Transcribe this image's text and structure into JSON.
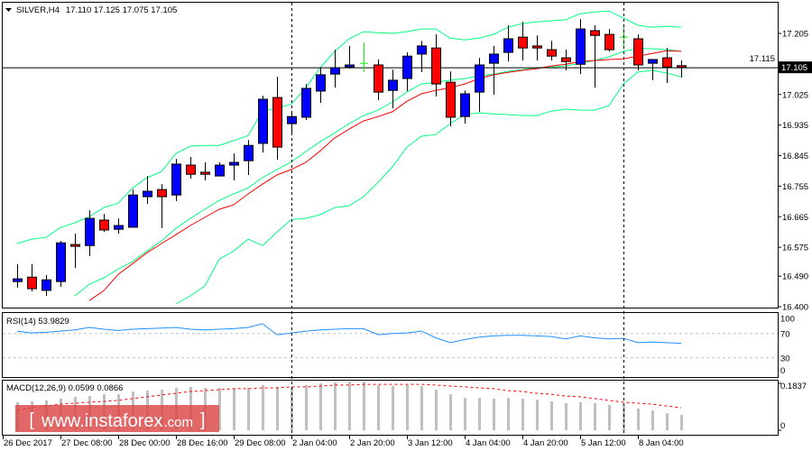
{
  "header": {
    "symbol": "SILVER,H4",
    "ohlc": "17.110 17.125 17.075 17.105"
  },
  "colors": {
    "bull": "#0000ff",
    "bear": "#ff0000",
    "doji": "#00ff00",
    "bands": "#00ff7f",
    "ma": "#ff0000",
    "rsi": "#1e90ff",
    "macd_hist": "#c0c0c0",
    "macd_signal": "#ff0000",
    "watermark": "#dc4646"
  },
  "watermark": {
    "text_open": "[",
    "text_main": "www.instaforex",
    "text_dom": ".com",
    "text_close": "]"
  },
  "chart_data": [
    {
      "type": "candlestick",
      "title": "SILVER,H4",
      "ylim": [
        16.4,
        17.295
      ],
      "y_ticks": [
        "17.205",
        "17.115",
        "17.025",
        "16.935",
        "16.845",
        "16.755",
        "16.665",
        "16.575",
        "16.490",
        "16.400"
      ],
      "current_price": 17.105,
      "current_price_label": "17.105",
      "x_labels": [
        {
          "candle": 0,
          "label": "26 Dec 2017"
        },
        {
          "candle": 4,
          "label": "27 Dec 08:00"
        },
        {
          "candle": 8,
          "label": "28 Dec 00:00"
        },
        {
          "candle": 12,
          "label": "28 Dec 16:00"
        },
        {
          "candle": 16,
          "label": "29 Dec 08:00"
        },
        {
          "candle": 20,
          "label": "2 Jan 04:00"
        },
        {
          "candle": 24,
          "label": "2 Jan 20:00"
        },
        {
          "candle": 28,
          "label": "3 Jan 12:00"
        },
        {
          "candle": 32,
          "label": "4 Jan 04:00"
        },
        {
          "candle": 36,
          "label": "4 Jan 20:00"
        },
        {
          "candle": 40,
          "label": "5 Jan 12:00"
        },
        {
          "candle": 44,
          "label": "8 Jan 04:00"
        }
      ],
      "period_separators": [
        20,
        43
      ],
      "candles": [
        [
          16.474,
          16.525,
          16.456,
          16.482
        ],
        [
          16.487,
          16.525,
          16.445,
          16.453
        ],
        [
          16.448,
          16.493,
          16.432,
          16.479
        ],
        [
          16.474,
          16.594,
          16.458,
          16.588
        ],
        [
          16.583,
          16.615,
          16.514,
          16.578
        ],
        [
          16.58,
          16.684,
          16.549,
          16.66
        ],
        [
          16.655,
          16.673,
          16.62,
          16.626
        ],
        [
          16.628,
          16.66,
          16.615,
          16.639
        ],
        [
          16.634,
          16.745,
          16.634,
          16.729
        ],
        [
          16.724,
          16.785,
          16.703,
          16.74
        ],
        [
          16.745,
          16.761,
          16.631,
          16.724
        ],
        [
          16.729,
          16.835,
          16.711,
          16.82
        ],
        [
          16.817,
          16.841,
          16.777,
          16.79
        ],
        [
          16.796,
          16.825,
          16.772,
          16.79
        ],
        [
          16.785,
          16.825,
          16.785,
          16.817
        ],
        [
          16.817,
          16.851,
          16.772,
          16.825
        ],
        [
          16.83,
          16.891,
          16.788,
          16.875
        ],
        [
          16.881,
          17.021,
          16.854,
          17.011
        ],
        [
          17.016,
          17.077,
          16.833,
          16.87
        ],
        [
          16.939,
          16.976,
          16.907,
          16.96
        ],
        [
          16.958,
          17.056,
          16.95,
          17.043
        ],
        [
          17.035,
          17.104,
          17.0,
          17.083
        ],
        [
          17.085,
          17.157,
          17.045,
          17.104
        ],
        [
          17.106,
          17.168,
          17.101,
          17.112
        ],
        [
          17.117,
          17.178,
          17.091,
          17.117
        ],
        [
          17.112,
          17.128,
          17.008,
          17.032
        ],
        [
          17.037,
          17.098,
          16.984,
          17.067
        ],
        [
          17.072,
          17.149,
          17.035,
          17.138
        ],
        [
          17.144,
          17.183,
          17.091,
          17.168
        ],
        [
          17.162,
          17.202,
          17.019,
          17.056
        ],
        [
          17.061,
          17.093,
          16.931,
          16.958
        ],
        [
          16.96,
          17.037,
          16.939,
          17.027
        ],
        [
          17.032,
          17.133,
          16.974,
          17.112
        ],
        [
          17.117,
          17.168,
          17.024,
          17.144
        ],
        [
          17.149,
          17.229,
          17.122,
          17.189
        ],
        [
          17.194,
          17.239,
          17.125,
          17.162
        ],
        [
          17.168,
          17.199,
          17.125,
          17.162
        ],
        [
          17.157,
          17.183,
          17.125,
          17.138
        ],
        [
          17.133,
          17.157,
          17.096,
          17.122
        ],
        [
          17.114,
          17.247,
          17.085,
          17.218
        ],
        [
          17.213,
          17.229,
          17.045,
          17.199
        ],
        [
          17.202,
          17.218,
          17.152,
          17.157
        ],
        [
          17.194,
          17.223,
          17.162,
          17.194
        ],
        [
          17.189,
          17.202,
          17.096,
          17.112
        ],
        [
          17.117,
          17.128,
          17.067,
          17.128
        ],
        [
          17.133,
          17.162,
          17.059,
          17.106
        ],
        [
          17.11,
          17.125,
          17.075,
          17.105
        ]
      ],
      "candle_fields": [
        "open",
        "high",
        "low",
        "close"
      ],
      "bands_upper": [
        16.586,
        16.599,
        16.604,
        16.633,
        16.647,
        16.665,
        16.692,
        16.705,
        16.75,
        16.78,
        16.798,
        16.851,
        16.873,
        16.875,
        16.875,
        16.889,
        16.904,
        16.976,
        16.984,
        16.997,
        17.045,
        17.104,
        17.152,
        17.189,
        17.21,
        17.207,
        17.205,
        17.21,
        17.218,
        17.218,
        17.191,
        17.186,
        17.191,
        17.202,
        17.223,
        17.234,
        17.239,
        17.242,
        17.245,
        17.263,
        17.268,
        17.271,
        17.25,
        17.229,
        17.223,
        17.226,
        17.223
      ],
      "bands_middle": [
        null,
        null,
        null,
        null,
        16.432,
        16.466,
        16.485,
        16.511,
        16.533,
        16.564,
        16.594,
        16.631,
        16.66,
        16.687,
        16.713,
        16.732,
        16.75,
        16.78,
        16.804,
        16.827,
        16.857,
        16.886,
        16.912,
        16.939,
        16.963,
        16.979,
        17.003,
        17.032,
        17.056,
        17.061,
        17.067,
        17.072,
        17.08,
        17.085,
        17.093,
        17.098,
        17.104,
        17.106,
        17.109,
        17.117,
        17.125,
        17.136,
        17.152,
        17.16,
        17.16,
        17.157,
        17.152
      ],
      "bands_lower": [
        null,
        null,
        null,
        null,
        null,
        null,
        null,
        null,
        null,
        null,
        null,
        16.408,
        16.432,
        16.461,
        16.54,
        16.564,
        16.599,
        16.58,
        16.62,
        16.657,
        16.66,
        16.671,
        16.692,
        16.697,
        16.724,
        16.766,
        16.812,
        16.87,
        16.902,
        16.907,
        16.939,
        16.966,
        16.971,
        16.968,
        16.966,
        16.963,
        16.963,
        16.976,
        16.982,
        16.979,
        16.979,
        16.992,
        17.056,
        17.091,
        17.096,
        17.088,
        17.077
      ],
      "moving_average": [
        null,
        null,
        null,
        null,
        null,
        16.418,
        16.447,
        16.495,
        16.527,
        16.559,
        16.586,
        16.612,
        16.639,
        16.663,
        16.687,
        16.7,
        16.732,
        16.761,
        16.788,
        16.804,
        16.825,
        16.859,
        16.897,
        16.923,
        16.947,
        16.96,
        16.974,
        17.005,
        17.027,
        17.037,
        17.045,
        17.056,
        17.072,
        17.083,
        17.09,
        17.096,
        17.101,
        17.109,
        17.114,
        17.122,
        17.125,
        17.128,
        17.13,
        17.138,
        17.146,
        17.154,
        17.152
      ]
    },
    {
      "type": "line",
      "title": "RSI(14) 53.9829",
      "ylim": [
        0,
        100
      ],
      "y_ticks": [
        "100",
        "70",
        "30",
        "0"
      ],
      "levels": [
        70,
        30
      ],
      "values": [
        74,
        71,
        72,
        74,
        76,
        80,
        77,
        75,
        77,
        78,
        79,
        80,
        77,
        76,
        77,
        78,
        80,
        86,
        68,
        71,
        74,
        76,
        77,
        78,
        78,
        68,
        70,
        71,
        74,
        63,
        55,
        60,
        64,
        66,
        67,
        67,
        66,
        65,
        61,
        66,
        63,
        61,
        62,
        55,
        56,
        55,
        54
      ]
    },
    {
      "type": "bar",
      "title": "MACD(12,26,9) 0.0599 0.0866",
      "ylim": [
        0,
        0.1837
      ],
      "y_ticks": [
        "0.1837",
        "0"
      ],
      "histogram": [
        0.11,
        0.113,
        0.117,
        0.124,
        0.131,
        0.134,
        0.141,
        0.141,
        0.152,
        0.155,
        0.159,
        0.166,
        0.17,
        0.166,
        0.166,
        0.163,
        0.166,
        0.177,
        0.17,
        0.166,
        0.177,
        0.184,
        0.187,
        0.191,
        0.191,
        0.177,
        0.173,
        0.177,
        0.173,
        0.159,
        0.141,
        0.127,
        0.127,
        0.124,
        0.127,
        0.124,
        0.12,
        0.113,
        0.106,
        0.11,
        0.106,
        0.099,
        0.095,
        0.085,
        0.078,
        0.067,
        0.06
      ],
      "signal": [
        0.078,
        0.088,
        0.095,
        0.102,
        0.106,
        0.11,
        0.113,
        0.117,
        0.124,
        0.131,
        0.138,
        0.145,
        0.152,
        0.155,
        0.159,
        0.163,
        0.163,
        0.166,
        0.166,
        0.17,
        0.17,
        0.173,
        0.177,
        0.177,
        0.18,
        0.18,
        0.18,
        0.18,
        0.18,
        0.177,
        0.173,
        0.17,
        0.166,
        0.163,
        0.155,
        0.152,
        0.145,
        0.141,
        0.134,
        0.131,
        0.124,
        0.117,
        0.11,
        0.106,
        0.102,
        0.095,
        0.088
      ]
    }
  ]
}
